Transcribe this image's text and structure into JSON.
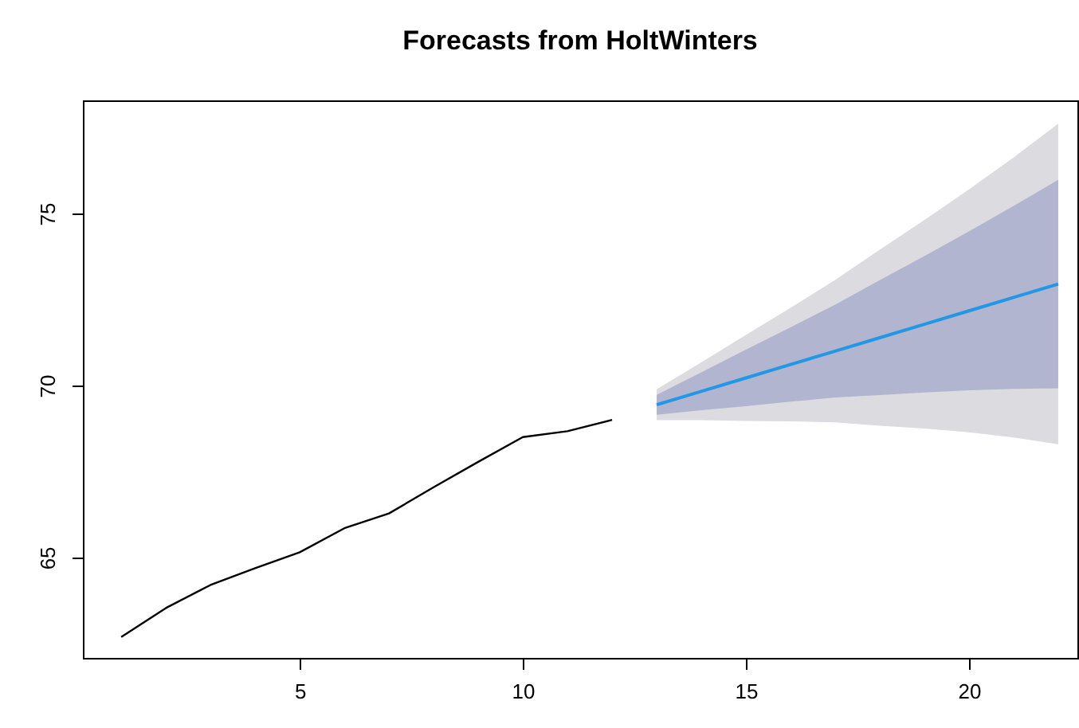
{
  "chart_data": {
    "type": "line",
    "title": "Forecasts from HoltWinters",
    "xlim": [
      0.14,
      22.43
    ],
    "ylim": [
      62.08,
      78.29
    ],
    "xticks": [
      5,
      10,
      15,
      20
    ],
    "yticks": [
      65,
      70,
      75
    ],
    "grid": false,
    "series": [
      {
        "color": "#dbdbe0",
        "x": [
          13,
          14,
          15,
          16,
          17,
          18,
          19,
          20,
          21,
          22
        ],
        "values": [
          null,
          null,
          null,
          null,
          null,
          null,
          null,
          null,
          null,
          null
        ],
        "lower": [
          68.99,
          68.99,
          68.97,
          68.96,
          68.93,
          68.83,
          68.75,
          68.64,
          68.49,
          68.29
        ],
        "upper": [
          69.89,
          70.67,
          71.47,
          72.26,
          73.07,
          73.95,
          74.81,
          75.7,
          76.63,
          77.61
        ]
      },
      {
        "color": "#b1b5cf",
        "x": [
          13,
          14,
          15,
          16,
          17,
          18,
          19,
          20,
          21,
          22
        ],
        "values": [
          null,
          null,
          null,
          null,
          null,
          null,
          null,
          null,
          null,
          null
        ],
        "lower": [
          69.15,
          69.28,
          69.4,
          69.53,
          69.65,
          69.72,
          69.8,
          69.86,
          69.9,
          69.92
        ],
        "upper": [
          69.73,
          70.38,
          71.04,
          71.69,
          72.35,
          73.06,
          73.76,
          74.48,
          75.22,
          75.98
        ]
      },
      {
        "color": "#000000",
        "x": [
          1,
          2,
          3,
          4,
          5,
          6,
          7,
          8,
          9,
          10,
          11,
          12
        ],
        "values": [
          62.69,
          63.53,
          64.2,
          64.69,
          65.15,
          65.85,
          66.28,
          67.04,
          67.78,
          68.5,
          68.67,
          69.0
        ]
      },
      {
        "color": "#2297e6",
        "x": [
          13,
          14,
          15,
          16,
          17,
          18,
          19,
          20,
          21,
          22
        ],
        "values": [
          69.44,
          69.83,
          70.22,
          70.61,
          71.0,
          71.39,
          71.78,
          72.17,
          72.56,
          72.95
        ]
      }
    ]
  }
}
